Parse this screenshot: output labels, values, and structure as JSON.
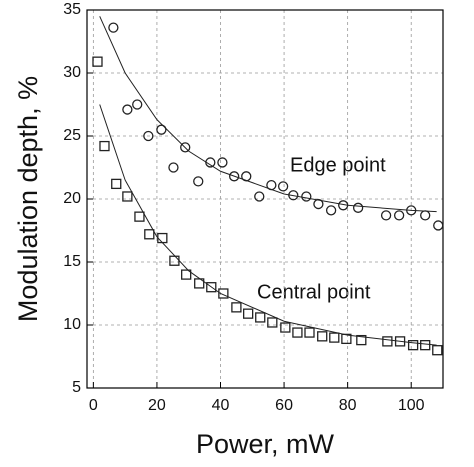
{
  "chart_data": {
    "type": "scatter",
    "xlabel": "Power, mW",
    "ylabel": "Modulation depth, %",
    "xlim": [
      -2,
      110
    ],
    "ylim": [
      5,
      35
    ],
    "xticks": [
      0,
      20,
      40,
      60,
      80,
      100
    ],
    "yticks": [
      5,
      10,
      15,
      20,
      25,
      30,
      35
    ],
    "grid": true,
    "color": "#222",
    "annotations": [
      "Edge point",
      "Central point"
    ],
    "series": [
      {
        "marker": "circle",
        "x": [
          6.3,
          10.7,
          13.8,
          17.3,
          21.4,
          25.2,
          28.9,
          33,
          36.8,
          40.6,
          44.3,
          48.1,
          52.2,
          56,
          59.7,
          62.9,
          67,
          70.8,
          74.8,
          78.6,
          83.3,
          92.1,
          96.2,
          100,
          104.4,
          108.5
        ],
        "values": [
          33.6,
          27.1,
          27.5,
          25.0,
          25.5,
          22.5,
          24.1,
          21.4,
          22.9,
          22.9,
          21.8,
          21.8,
          20.2,
          21.1,
          21.0,
          20.3,
          20.2,
          19.6,
          19.1,
          19.5,
          19.3,
          18.7,
          18.7,
          19.1,
          18.7,
          17.9
        ]
      },
      {
        "marker": "square",
        "x": [
          1.3,
          3.5,
          7.2,
          10.7,
          14.5,
          17.6,
          21.7,
          25.5,
          29.2,
          33.3,
          37.1,
          40.9,
          45,
          48.7,
          52.5,
          56.3,
          60.4,
          64.2,
          68,
          72,
          75.8,
          79.6,
          84.3,
          92.5,
          96.5,
          100.6,
          104.4,
          108.2
        ],
        "values": [
          30.9,
          24.2,
          21.2,
          20.2,
          18.6,
          17.2,
          16.9,
          15.1,
          14.0,
          13.3,
          13.0,
          12.5,
          11.4,
          10.9,
          10.6,
          10.2,
          9.8,
          9.4,
          9.4,
          9.1,
          9.0,
          8.9,
          8.8,
          8.7,
          8.7,
          8.4,
          8.4,
          8.0
        ]
      },
      {
        "marker": "none",
        "x": [
          2,
          10,
          20,
          30,
          40,
          60,
          80,
          100,
          108
        ],
        "values": [
          34.5,
          30.0,
          26.3,
          23.8,
          22.2,
          20.4,
          19.5,
          19.1,
          19.0
        ]
      },
      {
        "marker": "none",
        "x": [
          2,
          10,
          20,
          30,
          40,
          60,
          80,
          100,
          108
        ],
        "values": [
          27.5,
          21.5,
          17.0,
          14.3,
          12.5,
          10.3,
          9.2,
          8.6,
          8.4
        ]
      }
    ]
  }
}
